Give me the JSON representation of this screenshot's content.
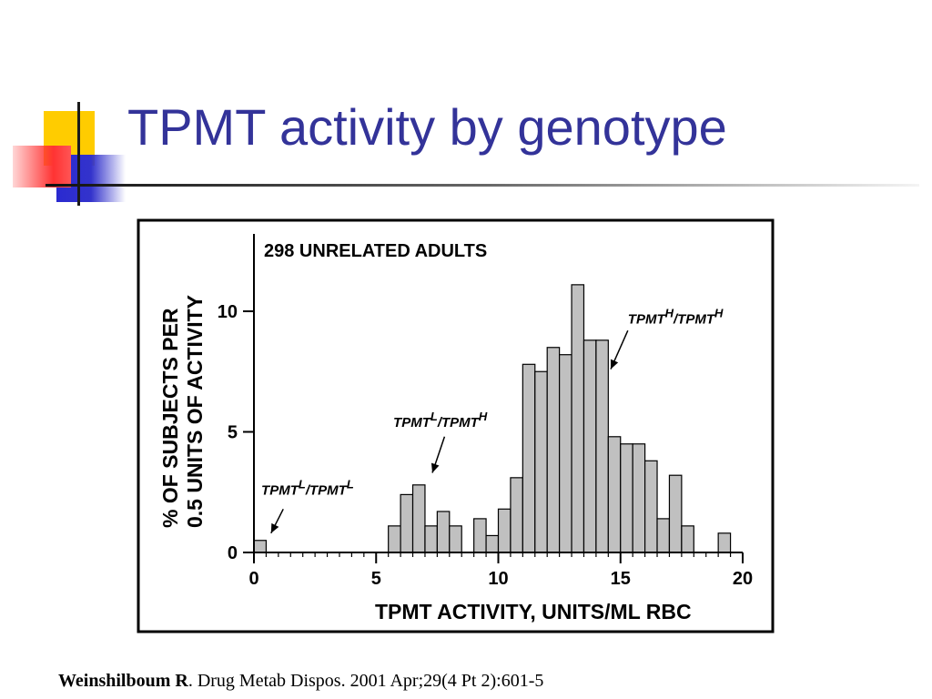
{
  "slide": {
    "title": "TPMT activity by genotype",
    "citation_author": "Weinshilboum R",
    "citation_rest": ". Drug Metab Dispos. 2001 Apr;29(4 Pt 2):601-5"
  },
  "colors": {
    "title": "#333399",
    "deco_yellow": "#FFCC00",
    "deco_red": "#FF3333",
    "deco_blue": "#3333CC",
    "bar_fill": "#C0C0C0"
  },
  "chart_data": {
    "type": "bar",
    "title": "298 UNRELATED ADULTS",
    "xlabel": "TPMT ACTIVITY, UNITS/ML RBC",
    "ylabel_line1": "% OF SUBJECTS PER",
    "ylabel_line2": "0.5 UNITS OF ACTIVITY",
    "xlim": [
      0,
      20
    ],
    "ylim": [
      0,
      13
    ],
    "bin_width": 0.5,
    "x_ticks": [
      0,
      5,
      10,
      15,
      20
    ],
    "y_ticks": [
      0,
      5,
      10
    ],
    "bars": [
      {
        "x": 0.0,
        "value": 0.5
      },
      {
        "x": 5.5,
        "value": 1.1
      },
      {
        "x": 6.0,
        "value": 2.4
      },
      {
        "x": 6.5,
        "value": 2.8
      },
      {
        "x": 7.0,
        "value": 1.1
      },
      {
        "x": 7.5,
        "value": 1.7
      },
      {
        "x": 8.0,
        "value": 1.1
      },
      {
        "x": 9.0,
        "value": 1.4
      },
      {
        "x": 9.5,
        "value": 0.7
      },
      {
        "x": 10.0,
        "value": 1.8
      },
      {
        "x": 10.5,
        "value": 3.1
      },
      {
        "x": 11.0,
        "value": 7.8
      },
      {
        "x": 11.5,
        "value": 7.5
      },
      {
        "x": 12.0,
        "value": 8.5
      },
      {
        "x": 12.5,
        "value": 8.2
      },
      {
        "x": 13.0,
        "value": 11.1
      },
      {
        "x": 13.5,
        "value": 8.8
      },
      {
        "x": 14.0,
        "value": 8.8
      },
      {
        "x": 14.5,
        "value": 4.8
      },
      {
        "x": 15.0,
        "value": 4.5
      },
      {
        "x": 15.5,
        "value": 4.5
      },
      {
        "x": 16.0,
        "value": 3.8
      },
      {
        "x": 16.5,
        "value": 1.4
      },
      {
        "x": 17.0,
        "value": 3.2
      },
      {
        "x": 17.5,
        "value": 1.1
      },
      {
        "x": 19.0,
        "value": 0.8
      }
    ],
    "annotations": [
      {
        "base": "TPMT",
        "sup1": "L",
        "mid": "/TPMT",
        "sup2": "L",
        "label_x": 0.3,
        "label_y": 2.4,
        "arrow_from": [
          1.2,
          1.8
        ],
        "arrow_to": [
          0.7,
          0.8
        ]
      },
      {
        "base": "TPMT",
        "sup1": "L",
        "mid": "/TPMT",
        "sup2": "H",
        "label_x": 5.7,
        "label_y": 5.2,
        "arrow_from": [
          7.8,
          4.8
        ],
        "arrow_to": [
          7.3,
          3.3
        ]
      },
      {
        "base": "TPMT",
        "sup1": "H",
        "mid": "/TPMT",
        "sup2": "H",
        "label_x": 15.3,
        "label_y": 9.5,
        "arrow_from": [
          15.3,
          9.2
        ],
        "arrow_to": [
          14.6,
          7.6
        ]
      }
    ]
  }
}
